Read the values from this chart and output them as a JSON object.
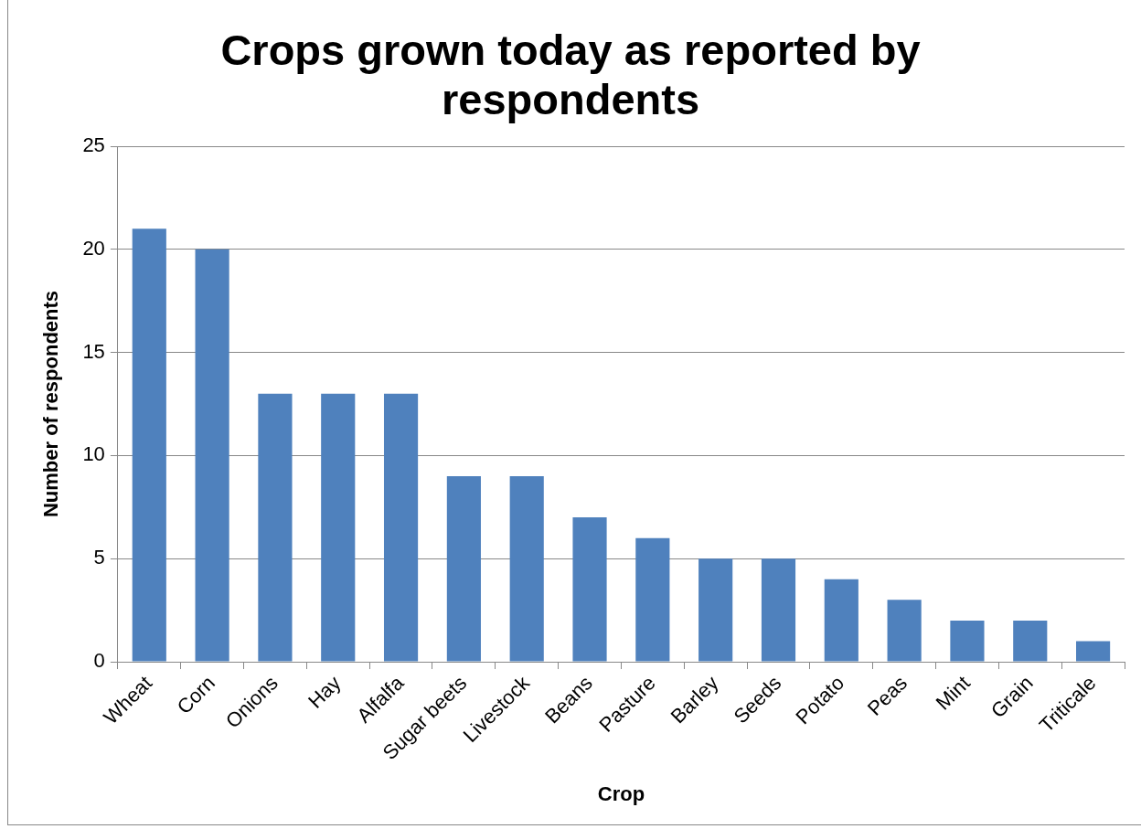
{
  "chart_data": {
    "type": "bar",
    "title": "Crops grown today as reported by respondents",
    "xlabel": "Crop",
    "ylabel": "Number of respondents",
    "categories": [
      "Wheat",
      "Corn",
      "Onions",
      "Hay",
      "Alfalfa",
      "Sugar beets",
      "Livestock",
      "Beans",
      "Pasture",
      "Barley",
      "Seeds",
      "Potato",
      "Peas",
      "Mint",
      "Grain",
      "Triticale"
    ],
    "values": [
      21,
      20,
      13,
      13,
      13,
      9,
      9,
      7,
      6,
      5,
      5,
      4,
      3,
      2,
      2,
      1
    ],
    "color": "#4f81bd",
    "ylim": [
      0,
      25
    ],
    "yticks": [
      0,
      5,
      10,
      15,
      20,
      25
    ],
    "grid": "y"
  }
}
